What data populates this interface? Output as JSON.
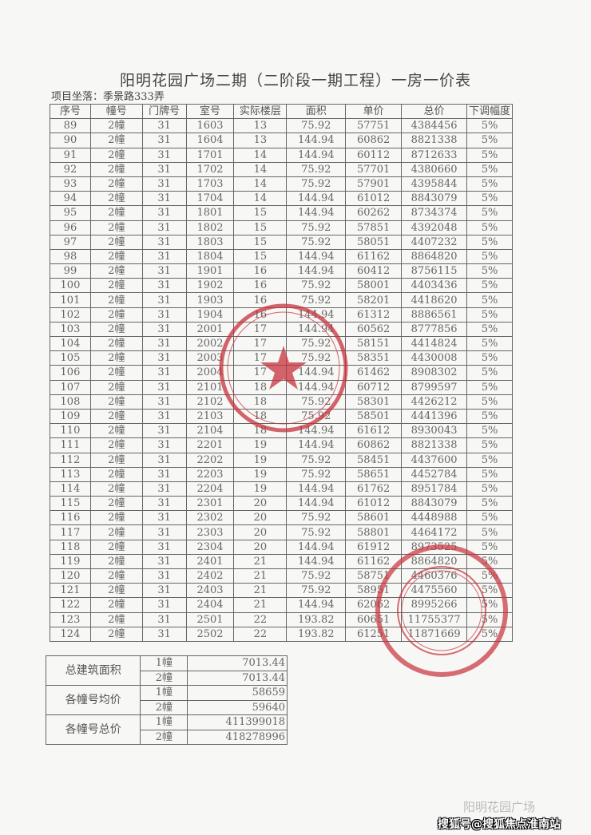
{
  "document": {
    "title": "阳明花园广场二期（二阶段一期工程）一房一价表",
    "location": "项目坐落：季景路333弄"
  },
  "table": {
    "headers": [
      "序号",
      "幢号",
      "门牌号",
      "室号",
      "实际楼层",
      "面积",
      "单价",
      "总价",
      "下调幅度"
    ],
    "rows": [
      [
        "89",
        "2幢",
        "31",
        "1603",
        "13",
        "75.92",
        "57751",
        "4384456",
        "5%"
      ],
      [
        "90",
        "2幢",
        "31",
        "1604",
        "13",
        "144.94",
        "60862",
        "8821338",
        "5%"
      ],
      [
        "91",
        "2幢",
        "31",
        "1701",
        "14",
        "144.94",
        "60112",
        "8712633",
        "5%"
      ],
      [
        "92",
        "2幢",
        "31",
        "1702",
        "14",
        "75.92",
        "57701",
        "4380660",
        "5%"
      ],
      [
        "93",
        "2幢",
        "31",
        "1703",
        "14",
        "75.92",
        "57901",
        "4395844",
        "5%"
      ],
      [
        "94",
        "2幢",
        "31",
        "1704",
        "14",
        "144.94",
        "61012",
        "8843079",
        "5%"
      ],
      [
        "95",
        "2幢",
        "31",
        "1801",
        "15",
        "144.94",
        "60262",
        "8734374",
        "5%"
      ],
      [
        "96",
        "2幢",
        "31",
        "1802",
        "15",
        "75.92",
        "57851",
        "4392048",
        "5%"
      ],
      [
        "97",
        "2幢",
        "31",
        "1803",
        "15",
        "75.92",
        "58051",
        "4407232",
        "5%"
      ],
      [
        "98",
        "2幢",
        "31",
        "1804",
        "15",
        "144.94",
        "61162",
        "8864820",
        "5%"
      ],
      [
        "99",
        "2幢",
        "31",
        "1901",
        "16",
        "144.94",
        "60412",
        "8756115",
        "5%"
      ],
      [
        "100",
        "2幢",
        "31",
        "1902",
        "16",
        "75.92",
        "58001",
        "4403436",
        "5%"
      ],
      [
        "101",
        "2幢",
        "31",
        "1903",
        "16",
        "75.92",
        "58201",
        "4418620",
        "5%"
      ],
      [
        "102",
        "2幢",
        "31",
        "1904",
        "16",
        "144.94",
        "61312",
        "8886561",
        "5%"
      ],
      [
        "103",
        "2幢",
        "31",
        "2001",
        "17",
        "144.94",
        "60562",
        "8777856",
        "5%"
      ],
      [
        "104",
        "2幢",
        "31",
        "2002",
        "17",
        "75.92",
        "58151",
        "4414824",
        "5%"
      ],
      [
        "105",
        "2幢",
        "31",
        "2003",
        "17",
        "75.92",
        "58351",
        "4430008",
        "5%"
      ],
      [
        "106",
        "2幢",
        "31",
        "2004",
        "17",
        "144.94",
        "61462",
        "8908302",
        "5%"
      ],
      [
        "107",
        "2幢",
        "31",
        "2101",
        "18",
        "144.94",
        "60712",
        "8799597",
        "5%"
      ],
      [
        "108",
        "2幢",
        "31",
        "2102",
        "18",
        "75.92",
        "58301",
        "4426212",
        "5%"
      ],
      [
        "109",
        "2幢",
        "31",
        "2103",
        "18",
        "75.92",
        "58501",
        "4441396",
        "5%"
      ],
      [
        "110",
        "2幢",
        "31",
        "2104",
        "18",
        "144.94",
        "61612",
        "8930043",
        "5%"
      ],
      [
        "111",
        "2幢",
        "31",
        "2201",
        "19",
        "144.94",
        "60862",
        "8821338",
        "5%"
      ],
      [
        "112",
        "2幢",
        "31",
        "2202",
        "19",
        "75.92",
        "58451",
        "4437600",
        "5%"
      ],
      [
        "113",
        "2幢",
        "31",
        "2203",
        "19",
        "75.92",
        "58651",
        "4452784",
        "5%"
      ],
      [
        "114",
        "2幢",
        "31",
        "2204",
        "19",
        "144.94",
        "61762",
        "8951784",
        "5%"
      ],
      [
        "115",
        "2幢",
        "31",
        "2301",
        "20",
        "144.94",
        "61012",
        "8843079",
        "5%"
      ],
      [
        "116",
        "2幢",
        "31",
        "2302",
        "20",
        "75.92",
        "58601",
        "4448988",
        "5%"
      ],
      [
        "117",
        "2幢",
        "31",
        "2303",
        "20",
        "75.92",
        "58801",
        "4464172",
        "5%"
      ],
      [
        "118",
        "2幢",
        "31",
        "2304",
        "20",
        "144.94",
        "61912",
        "8973525",
        "5%"
      ],
      [
        "119",
        "2幢",
        "31",
        "2401",
        "21",
        "144.94",
        "61162",
        "8864820",
        "5%"
      ],
      [
        "120",
        "2幢",
        "31",
        "2402",
        "21",
        "75.92",
        "58751",
        "4460376",
        "5%"
      ],
      [
        "121",
        "2幢",
        "31",
        "2403",
        "21",
        "75.92",
        "58951",
        "4475560",
        "5%"
      ],
      [
        "122",
        "2幢",
        "31",
        "2404",
        "21",
        "144.94",
        "62062",
        "8995266",
        "5%"
      ],
      [
        "123",
        "2幢",
        "31",
        "2501",
        "22",
        "193.82",
        "60651",
        "11755377",
        "5%"
      ],
      [
        "124",
        "2幢",
        "31",
        "2502",
        "22",
        "193.82",
        "61251",
        "11871669",
        "5%"
      ]
    ]
  },
  "summary": [
    {
      "label": "总建筑面积",
      "items": [
        {
          "building": "1幢",
          "value": "7013.44"
        },
        {
          "building": "2幢",
          "value": "7013.44"
        }
      ]
    },
    {
      "label": "各幢号均价",
      "items": [
        {
          "building": "1幢",
          "value": "58659"
        },
        {
          "building": "2幢",
          "value": "59640"
        }
      ]
    },
    {
      "label": "各幢号总价",
      "items": [
        {
          "building": "1幢",
          "value": "411399018"
        },
        {
          "building": "2幢",
          "value": "418278996"
        }
      ]
    }
  ],
  "stamps": {
    "color": "#c8323c",
    "stamp1_text": "上海市浦东新区建设和交通委员会",
    "stamp2_text": "SHANGHAI CHYAU FWU REAL ESTATE CO."
  },
  "watermark": {
    "account": "阳明花园广场",
    "source": "搜狐号@搜狐焦点淮南站"
  }
}
